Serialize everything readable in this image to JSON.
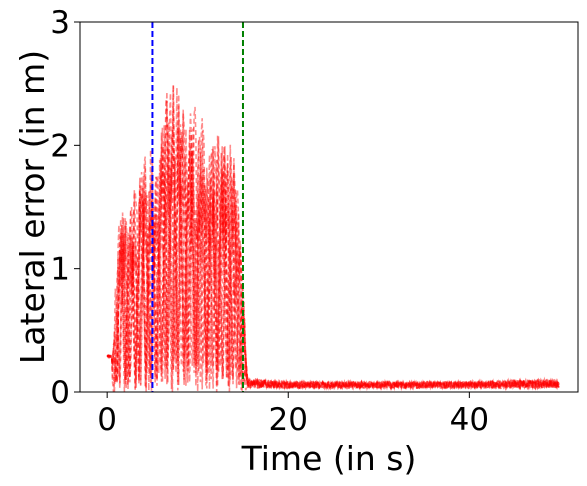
{
  "chart_data": {
    "type": "line",
    "title": "",
    "xlabel": "Time (in s)",
    "ylabel": "Lateral error (in m)",
    "xlim": [
      -3,
      52
    ],
    "ylim": [
      0,
      3
    ],
    "xticks": [
      0,
      20,
      40
    ],
    "yticks": [
      0,
      1,
      2,
      3
    ],
    "grid": false,
    "legend": "none",
    "vertical_lines": [
      {
        "x": 5,
        "color": "#0000ff",
        "style": "dashed"
      },
      {
        "x": 15,
        "color": "#008000",
        "style": "dashed"
      }
    ],
    "series_style": {
      "color": "#ff0000",
      "opacity": 0.45,
      "dashed": true,
      "count": 10
    },
    "series_envelope": [
      {
        "x": 0,
        "y": 0.3
      },
      {
        "x": 0.6,
        "y": 0.33
      },
      {
        "x": 1.3,
        "y": 1.6
      },
      {
        "x": 2.5,
        "y": 1.5
      },
      {
        "x": 3.3,
        "y": 1.8
      },
      {
        "x": 4.6,
        "y": 2.0
      },
      {
        "x": 5.5,
        "y": 2.1
      },
      {
        "x": 6.8,
        "y": 2.58
      },
      {
        "x": 8.5,
        "y": 2.5
      },
      {
        "x": 10,
        "y": 2.3
      },
      {
        "x": 11.5,
        "y": 2.15
      },
      {
        "x": 13.7,
        "y": 2.12
      },
      {
        "x": 14.7,
        "y": 1.45
      },
      {
        "x": 15.5,
        "y": 0.15
      },
      {
        "x": 20,
        "y": 0.1
      },
      {
        "x": 30,
        "y": 0.1
      },
      {
        "x": 40,
        "y": 0.1
      },
      {
        "x": 49,
        "y": 0.14
      },
      {
        "x": 50,
        "y": 0.1
      }
    ]
  }
}
